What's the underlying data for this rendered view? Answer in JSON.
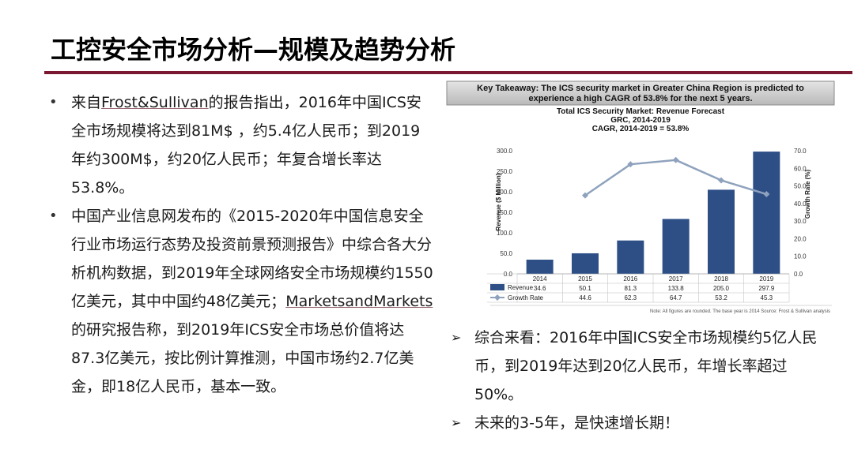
{
  "title": "工控安全市场分析—规模及趋势分析",
  "left_bullets": [
    {
      "segments": [
        {
          "t": "来自"
        },
        {
          "t": "Frost&Sullivan",
          "u": true
        },
        {
          "t": "的报告指出，2016年中国ICS安全市场规模将达到81M$ ，约5.4亿人民币；到2019年约300M$，约20亿人民币；年复合增长率达53.8%。"
        }
      ]
    },
    {
      "segments": [
        {
          "t": "中国产业信息网发布的《2015-2020年中国信息安全行业市场运行态势及投资前景预测报告》中综合各大分析机构数据，到2019年全球网络安全市场规模约1550亿美元，其中中国约48亿美元；"
        },
        {
          "t": "MarketsandMarkets",
          "u": true
        },
        {
          "t": " 的研究报告称，到2019年ICS安全市场总价值将达 87.3亿美元，按比例计算推测，中国市场约2.7亿美金，即18亿人民币，基本一致。"
        }
      ]
    }
  ],
  "right_points": [
    "综合来看：2016年中国ICS安全市场规模约5亿人民币，到2019年达到20亿人民币，年增长率超过50%。",
    "未来的3-5年，是快速增长期！"
  ],
  "chart_data": {
    "type": "bar",
    "takeaway_line1": "Key Takeaway: The ICS security market in Greater China Region is predicted to",
    "takeaway_line2": "experience  a high CAGR of 53.8% for the next 5 years.",
    "title": "Total ICS Security Market: Revenue Forecast",
    "subtitle1": "GRC, 2014-2019",
    "subtitle2": "CAGR, 2014-2019 = 53.8%",
    "categories": [
      "2014",
      "2015",
      "2016",
      "2017",
      "2018",
      "2019"
    ],
    "series": [
      {
        "name": "Revenue",
        "kind": "bar",
        "axis": "left",
        "values": [
          34.6,
          50.1,
          81.3,
          133.8,
          205.0,
          297.9
        ],
        "labels": [
          "34.6",
          "50.1",
          "81.3",
          "133.8",
          "205.0",
          "297.9"
        ],
        "color": "#2d4f86"
      },
      {
        "name": "Growth Rate",
        "kind": "line",
        "axis": "right",
        "values": [
          null,
          44.6,
          62.3,
          64.7,
          53.2,
          45.3
        ],
        "labels": [
          "-",
          "44.6",
          "62.3",
          "64.7",
          "53.2",
          "45.3"
        ],
        "color": "#8fa2bd"
      }
    ],
    "ylabel": "Revenue ($ Million)",
    "ylabel_right": "Growth Rate (%)",
    "ylim": [
      0,
      300
    ],
    "ylim_right": [
      0,
      70
    ],
    "yticks": [
      "0.0",
      "50.0",
      "100.0",
      "150.0",
      "200.0",
      "250.0",
      "300.0"
    ],
    "yticks_right": [
      "0.0",
      "10.0",
      "20.0",
      "30.0",
      "40.0",
      "50.0",
      "60.0",
      "70.0"
    ],
    "footnote": "Note: All figures are rounded. The base year is 2014 Source: Frost & Sullivan analysis"
  }
}
